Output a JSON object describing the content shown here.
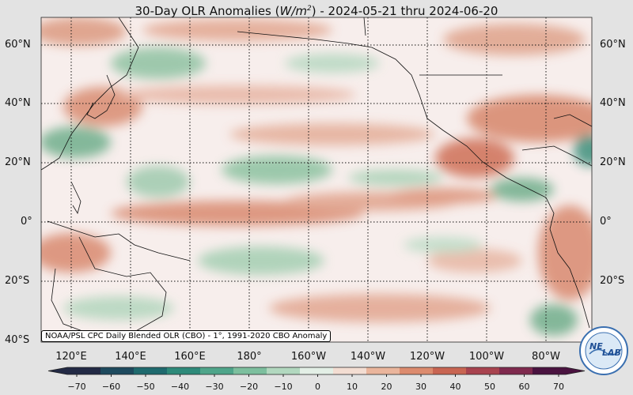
{
  "title": {
    "prefix": "30-Day OLR Anomalies (",
    "unit_base": "W/m",
    "unit_exp": "2",
    "suffix": ") - 2024-05-21 thru 2024-06-20"
  },
  "lat_labels": [
    "60°N",
    "40°N",
    "20°N",
    "0°",
    "20°S",
    "40°S"
  ],
  "lon_labels": [
    "120°E",
    "140°E",
    "160°E",
    "180°",
    "160°W",
    "140°W",
    "120°W",
    "100°W",
    "80°W"
  ],
  "credit": "NOAA/PSL CPC Daily Blended OLR (CBO) - 1°, 1991-2020 CBO Anomaly",
  "colorbar": {
    "ticks": [
      "−70",
      "−60",
      "−50",
      "−40",
      "−30",
      "−20",
      "−10",
      "0",
      "10",
      "20",
      "30",
      "40",
      "50",
      "60",
      "70"
    ],
    "colors": [
      "#232a45",
      "#1e4a5e",
      "#1f6a6e",
      "#2e8a7a",
      "#4fa58a",
      "#7dbf9e",
      "#b2d8bf",
      "#e3efe6",
      "#f3ddd2",
      "#eab59c",
      "#dc8b6e",
      "#c86552",
      "#a8434f",
      "#7f2a4e",
      "#4a1340"
    ]
  },
  "logo": {
    "text_a": "NE",
    "text_b": "LAB",
    "name": "psl-logo"
  },
  "colors": {
    "neutral": "#f7eeec",
    "green": "#7fb893",
    "red": "#d9846b",
    "coast": "#111111"
  }
}
